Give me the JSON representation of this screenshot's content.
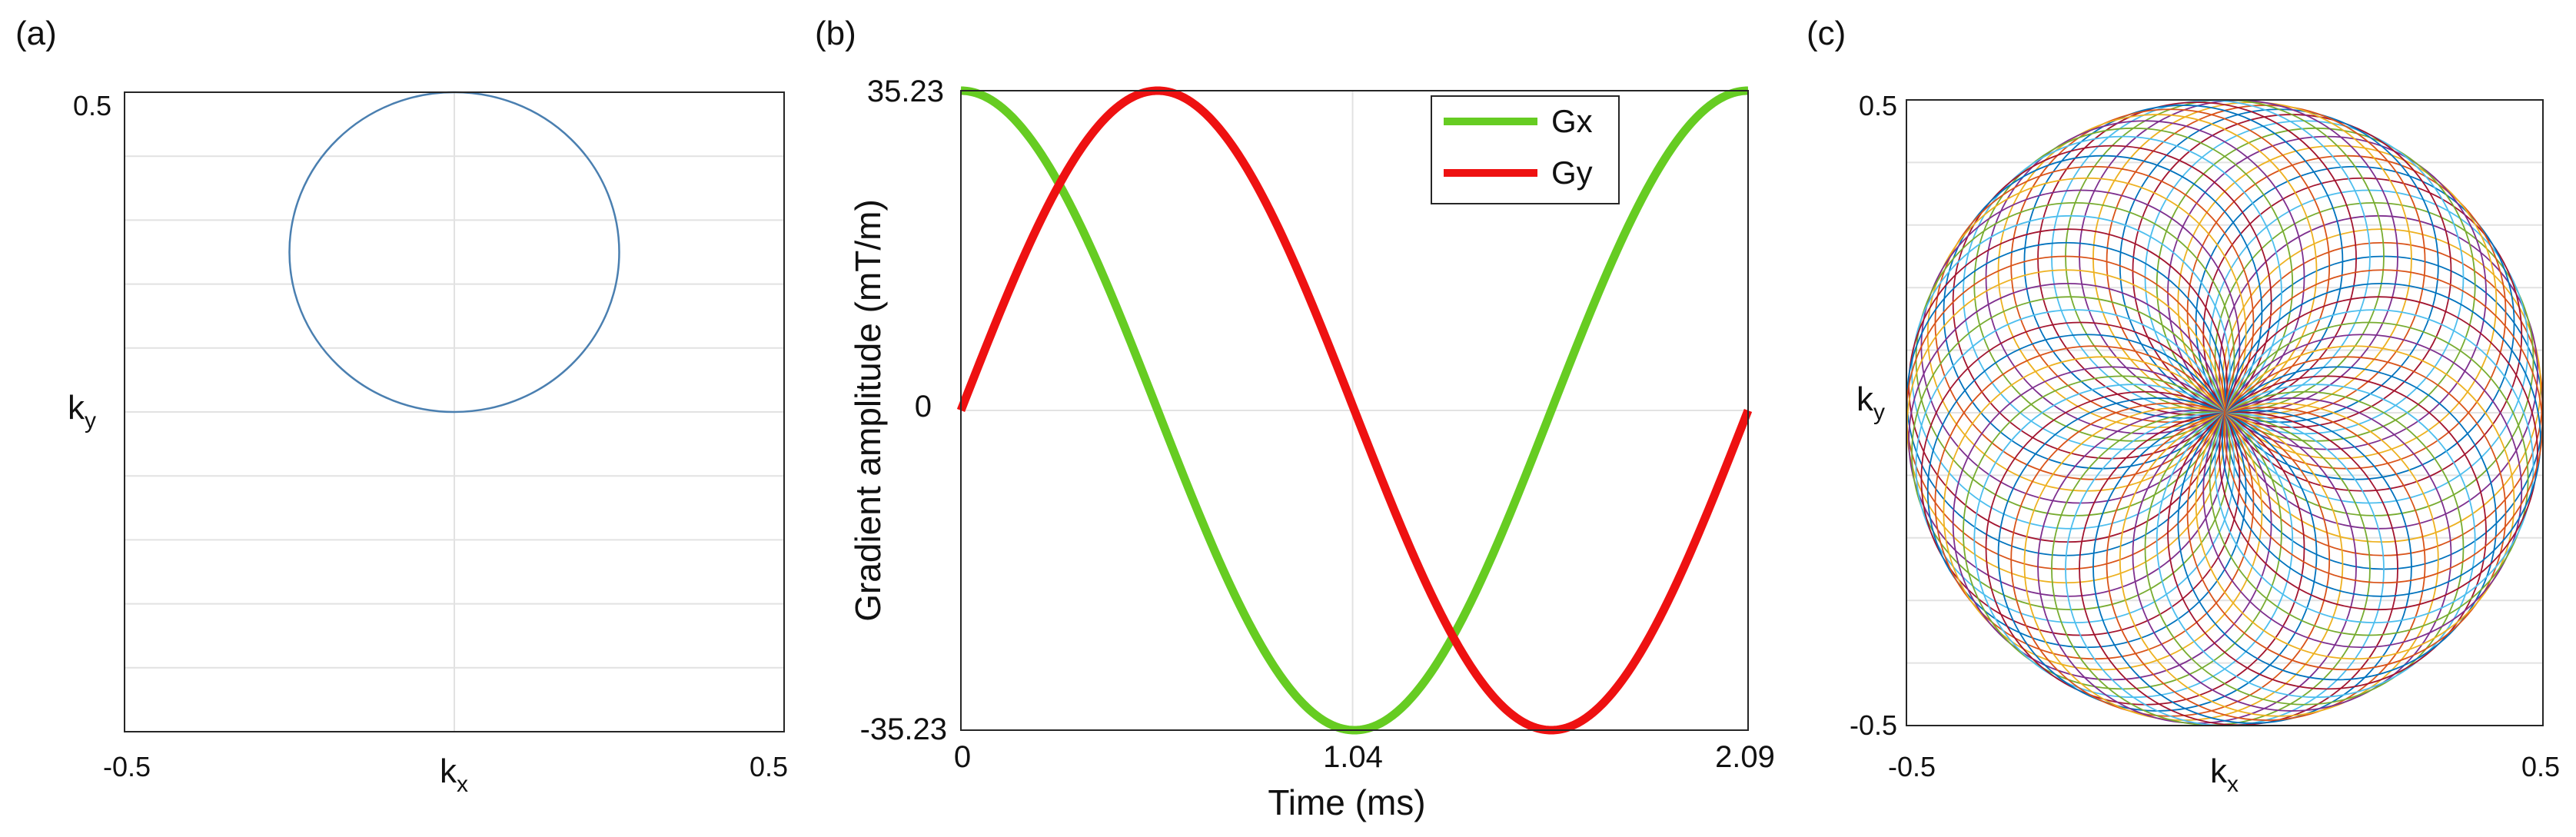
{
  "chart_data": [
    {
      "panel_label": "(a)",
      "type": "line",
      "xlabel": "k",
      "xlabel_sub": "x",
      "ylabel": "k",
      "ylabel_sub": "y",
      "xlim": [
        -0.5,
        0.5
      ],
      "ylim": [
        -0.5,
        0.5
      ],
      "x_ticks": [
        "-0.5",
        "0.5"
      ],
      "y_ticks": [
        "0.5"
      ],
      "grid": true,
      "series": [
        {
          "shape": "circle",
          "center": [
            0,
            0.25
          ],
          "radius": 0.25,
          "color": "#4a7fb0"
        }
      ]
    },
    {
      "panel_label": "(b)",
      "type": "line",
      "xlabel": "Time (ms)",
      "ylabel": "Gradient amplitude (mT/m)",
      "xlim": [
        0,
        2.09
      ],
      "ylim": [
        -35.23,
        35.23
      ],
      "x_ticks": [
        "0",
        "1.04",
        "2.09"
      ],
      "y_ticks": [
        "35.23",
        "0",
        "-35.23"
      ],
      "grid": true,
      "legend": "top-right",
      "series": [
        {
          "name": "Gx",
          "color": "#66cc22",
          "function": "cos",
          "amplitude": 35.23,
          "period": 2.09,
          "phase": 0
        },
        {
          "name": "Gy",
          "color": "#ee1111",
          "function": "sin",
          "amplitude": 35.23,
          "period": 2.09,
          "phase": 0
        }
      ]
    },
    {
      "panel_label": "(c)",
      "type": "line",
      "xlabel": "k",
      "xlabel_sub": "x",
      "ylabel": "k",
      "ylabel_sub": "y",
      "xlim": [
        -0.5,
        0.5
      ],
      "ylim": [
        -0.5,
        0.5
      ],
      "x_ticks": [
        "-0.5",
        "0.5"
      ],
      "y_ticks": [
        "0.5",
        "-0.5"
      ],
      "grid": true,
      "pattern": "rotated circles passing through k-space center",
      "circle_radius": 0.25,
      "circle_count": 72,
      "colors": [
        "#0072bd",
        "#d95319",
        "#edb120",
        "#7e2f8e",
        "#77ac30",
        "#4dbeee",
        "#a2142f"
      ]
    }
  ]
}
